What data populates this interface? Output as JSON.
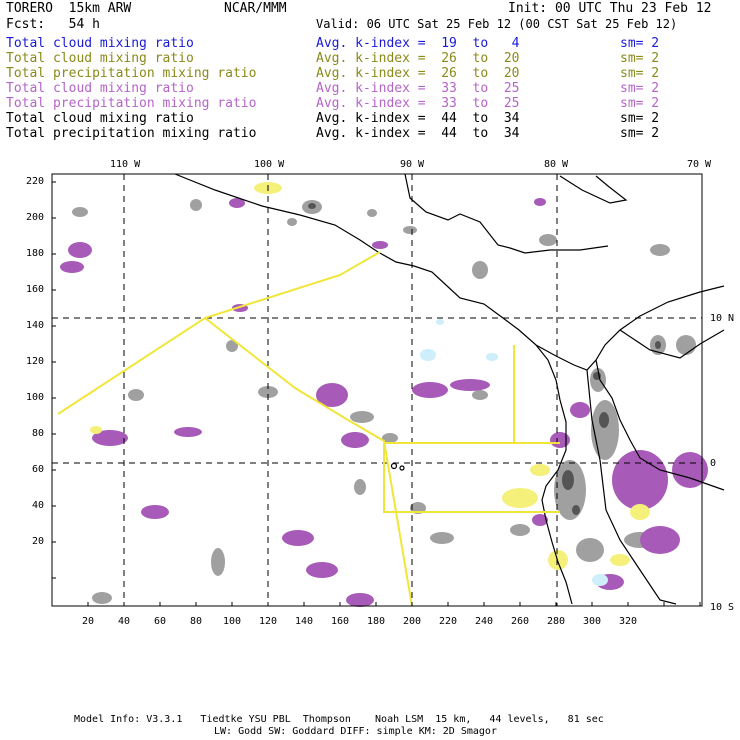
{
  "header": {
    "model": "TORERO  15km ARW",
    "org": "NCAR/MMM",
    "init": "Init: 00 UTC Thu 23 Feb 12",
    "fcst": "Fcst:   54 h",
    "valid": "Valid: 06 UTC Sat 25 Feb 12 (00 CST Sat 25 Feb 12)"
  },
  "legend": [
    {
      "field": "Total cloud mixing ratio",
      "kindex": "Avg. k-index =  19  to   4",
      "sm": "sm= 2",
      "color": "#1a1ad6"
    },
    {
      "field": "Total cloud mixing ratio",
      "kindex": "Avg. k-index =  26  to  20",
      "sm": "sm= 2",
      "color": "#8a8a1a"
    },
    {
      "field": "Total precipitation mixing ratio",
      "kindex": "Avg. k-index =  26  to  20",
      "sm": "sm= 2",
      "color": "#8a8a1a"
    },
    {
      "field": "Total cloud mixing ratio",
      "kindex": "Avg. k-index =  33  to  25",
      "sm": "sm= 2",
      "color": "#b565c8"
    },
    {
      "field": "Total precipitation mixing ratio",
      "kindex": "Avg. k-index =  33  to  25",
      "sm": "sm= 2",
      "color": "#b565c8"
    },
    {
      "field": "Total cloud mixing ratio",
      "kindex": "Avg. k-index =  44  to  34",
      "sm": "sm= 2",
      "color": "#000000"
    },
    {
      "field": "Total precipitation mixing ratio",
      "kindex": "Avg. k-index =  44  to  34",
      "sm": "sm= 2",
      "color": "#000000"
    }
  ],
  "axes": {
    "lon_labels": [
      "110 W",
      "100 W",
      "90 W",
      "80 W",
      "70 W"
    ],
    "lat_labels": [
      "10 N",
      "0",
      "10 S"
    ],
    "y_ticks": [
      "220",
      "200",
      "180",
      "160",
      "140",
      "120",
      "100",
      "80",
      "60",
      "40",
      "20"
    ],
    "x_ticks": [
      "20",
      "40",
      "60",
      "80",
      "100",
      "120",
      "140",
      "160",
      "180",
      "200",
      "220",
      "240",
      "260",
      "280",
      "300",
      "320"
    ]
  },
  "colors": {
    "gray": "#a0a0a0",
    "dark_gray": "#555555",
    "purple": "#a85ab8",
    "yellow": "#f5f07a",
    "light_blue": "#cdeefa",
    "domain_line": "#f0e63a"
  },
  "footer": {
    "line1": "Model Info: V3.3.1   Tiedtke YSU PBL  Thompson    Noah LSM  15 km,   44 levels,   81 sec",
    "line2": "LW: Godd SW: Goddard DIFF: simple KM: 2D Smagor"
  }
}
